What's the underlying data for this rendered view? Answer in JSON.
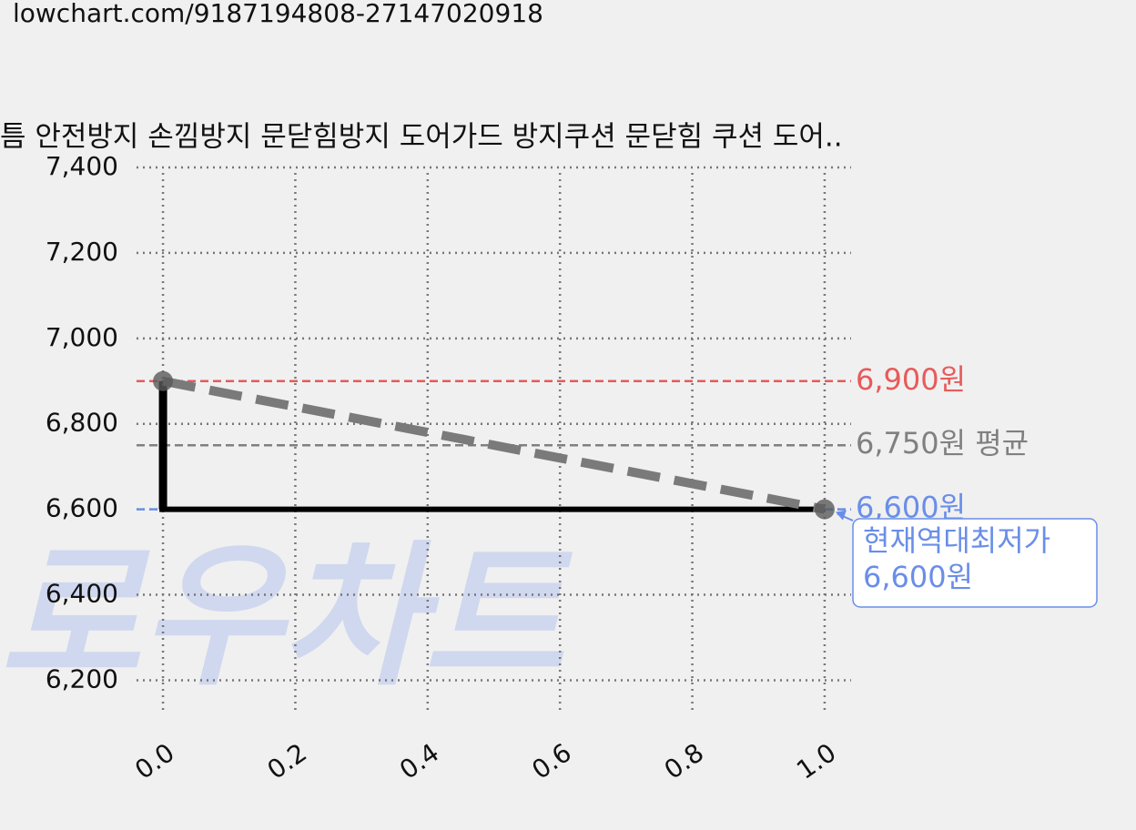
{
  "url": "lowchart.com/9187194808-27147020918",
  "chart_data": {
    "type": "line",
    "title": "틈 안전방지 손낌방지 문닫힘방지 도어가드 방지쿠션 문닫힘 쿠션 도어..",
    "watermark": "로우차트",
    "x": [
      0,
      1
    ],
    "series": [
      {
        "color": "#000000",
        "trend_color": "#7a7a7a",
        "values": [
          6900,
          6600
        ]
      }
    ],
    "xlim": [
      -0.04,
      1.04
    ],
    "ylim": [
      6120,
      7400
    ],
    "xticks": [
      {
        "value": 0,
        "label": "0.0"
      },
      0.2,
      0.4,
      0.6,
      0.8,
      {
        "value": 1,
        "label": "1.0"
      }
    ],
    "yticks": [
      {
        "value": 6200,
        "label": "6,200"
      },
      {
        "value": 6400,
        "label": "6,400"
      },
      {
        "value": 6600,
        "label": "6,600"
      },
      {
        "value": 6800,
        "label": "6,800"
      },
      {
        "value": 7000,
        "label": "7,000"
      },
      {
        "value": 7200,
        "label": "7,200"
      },
      {
        "value": 7400,
        "label": "7,400"
      }
    ],
    "grid": true,
    "hlines": [
      {
        "value": 6900,
        "label": "6,900원",
        "color": "#e85a5a"
      },
      {
        "value": 6750,
        "label": "6,750원 평균",
        "color": "#808080"
      },
      {
        "value": 6600,
        "label": "6,600원",
        "color": "#6a8ee8"
      }
    ],
    "annotation": {
      "x": 1,
      "y": 6600,
      "lines": [
        "현재역대최저가",
        "6,600원"
      ],
      "color": "#6a8ee8"
    }
  }
}
